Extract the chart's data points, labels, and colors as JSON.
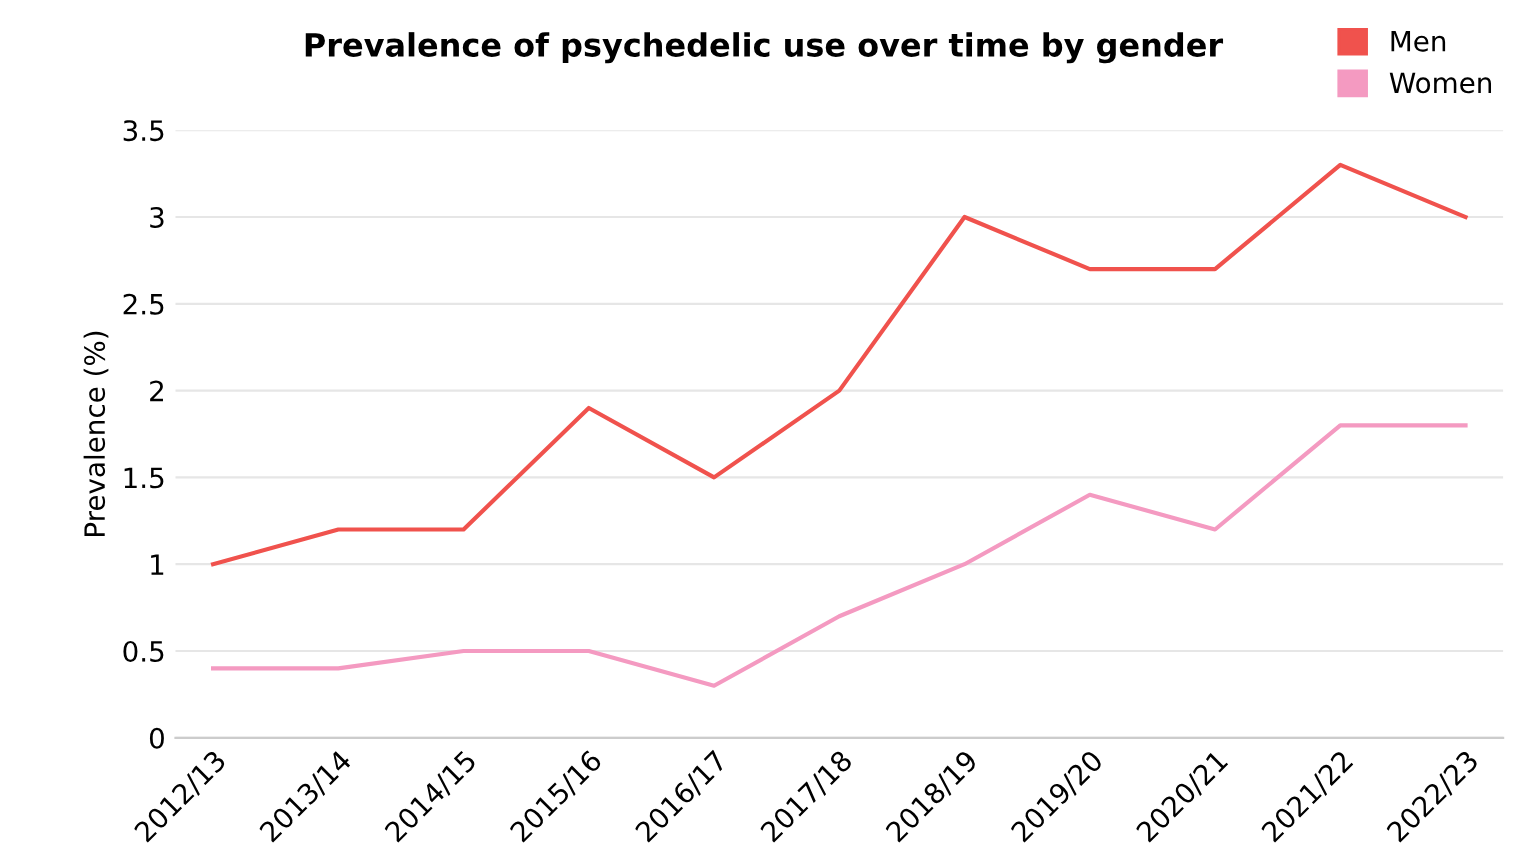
{
  "chart_data": {
    "type": "line",
    "title": "Prevalence of psychedelic use over time by gender",
    "ylabel": "Prevalence (%)",
    "categories": [
      "2012/13",
      "2013/14",
      "2014/15",
      "2015/16",
      "2016/17",
      "2017/18",
      "2018/19",
      "2019/20",
      "2020/21",
      "2021/22",
      "2022/23"
    ],
    "series": [
      {
        "name": "Men",
        "color": "#f0524d",
        "values": [
          1.0,
          1.2,
          1.2,
          1.9,
          1.5,
          2.0,
          3.0,
          2.7,
          2.7,
          3.3,
          3.0
        ]
      },
      {
        "name": "Women",
        "color": "#f49ac1",
        "values": [
          0.4,
          0.4,
          0.5,
          0.5,
          0.3,
          0.7,
          1.0,
          1.4,
          1.2,
          1.8,
          1.8
        ]
      }
    ],
    "ylim": [
      0,
      3.5
    ],
    "yticks": [
      0,
      0.5,
      1,
      1.5,
      2,
      2.5,
      3,
      3.5
    ],
    "grid": "y",
    "legend": "top right",
    "marker": "none"
  }
}
